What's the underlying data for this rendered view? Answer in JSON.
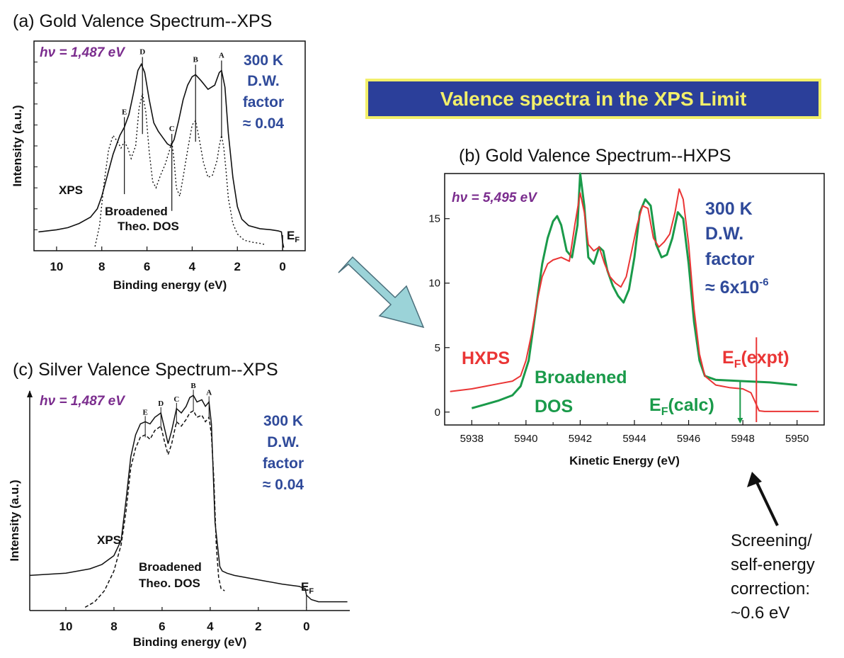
{
  "banner": {
    "text": "Valence spectra in the XPS Limit"
  },
  "colors": {
    "xps_trace": "#111111",
    "theory_trace": "#111111",
    "hxps_trace": "#ea3535",
    "dos_trace": "#1a9a4a",
    "hv_text": "#7b2d8e",
    "dw_text": "#2f4a9a",
    "banner_bg": "#2b3f9a",
    "banner_border": "#f2ef6a",
    "arrow_fill": "#9bd3d8"
  },
  "chart_data": [
    {
      "id": "a",
      "type": "line",
      "title": "(a) Gold Valence Spectrum--XPS",
      "xlabel": "Binding energy (eV)",
      "ylabel": "Intensity (a.u.)",
      "xlim": [
        11,
        -1
      ],
      "x_reversed": true,
      "x_ticks": [
        "10",
        "8",
        "6",
        "4",
        "2",
        "0"
      ],
      "x_tick_values": [
        10,
        8,
        6,
        4,
        2,
        0
      ],
      "ylim": [
        0,
        10
      ],
      "photon_energy": "hν = 1,487 eV",
      "dw_note": [
        "300 K",
        "D.W.",
        "factor",
        "≈ 0.04"
      ],
      "labels": {
        "xps": "XPS",
        "theory": [
          "Broadened",
          "Theo. DOS"
        ],
        "fermi": "E",
        "fermi_sub": "F"
      },
      "peaks": [
        {
          "name": "A",
          "x": 2.7
        },
        {
          "name": "B",
          "x": 3.85
        },
        {
          "name": "C",
          "x": 4.9
        },
        {
          "name": "D",
          "x": 6.2
        },
        {
          "name": "E",
          "x": 7.0
        }
      ],
      "series": [
        {
          "name": "XPS",
          "style": "solid",
          "x": [
            10.8,
            10.0,
            9.5,
            9.0,
            8.5,
            8.2,
            8.0,
            7.8,
            7.5,
            7.2,
            7.0,
            6.8,
            6.6,
            6.4,
            6.25,
            6.1,
            5.9,
            5.7,
            5.5,
            5.3,
            5.1,
            4.95,
            4.8,
            4.6,
            4.4,
            4.2,
            4.0,
            3.85,
            3.6,
            3.3,
            3.0,
            2.8,
            2.7,
            2.55,
            2.4,
            2.2,
            2.0,
            1.8,
            1.5,
            1.0,
            0.5,
            0.2,
            0.05,
            0.0,
            -0.05
          ],
          "y": [
            0.9,
            1.0,
            1.1,
            1.3,
            1.6,
            2.0,
            2.6,
            3.4,
            4.6,
            5.5,
            5.9,
            6.5,
            7.5,
            8.6,
            8.9,
            8.5,
            7.2,
            6.1,
            5.7,
            5.4,
            5.1,
            5.0,
            5.3,
            6.2,
            7.2,
            7.9,
            8.3,
            8.4,
            8.1,
            7.7,
            7.9,
            8.5,
            8.6,
            7.8,
            5.6,
            3.5,
            2.1,
            1.5,
            1.2,
            1.05,
            1.0,
            0.95,
            0.9,
            0.4,
            0.15
          ]
        },
        {
          "name": "Broadened Theo. DOS",
          "style": "dotted",
          "x": [
            8.3,
            8.1,
            7.9,
            7.7,
            7.5,
            7.3,
            7.15,
            7.0,
            6.85,
            6.7,
            6.5,
            6.35,
            6.2,
            6.05,
            5.9,
            5.75,
            5.6,
            5.4,
            5.2,
            5.0,
            4.9,
            4.8,
            4.7,
            4.55,
            4.4,
            4.2,
            4.0,
            3.85,
            3.7,
            3.5,
            3.3,
            3.1,
            2.9,
            2.8,
            2.7,
            2.6,
            2.5,
            2.4,
            2.2,
            2.0,
            1.7,
            1.3,
            1.0,
            0.8
          ],
          "y": [
            0.2,
            1.2,
            3.2,
            4.8,
            5.5,
            5.2,
            4.9,
            5.2,
            4.9,
            4.4,
            5.0,
            6.8,
            7.5,
            6.6,
            4.7,
            3.3,
            3.0,
            3.6,
            4.1,
            4.8,
            5.2,
            4.3,
            3.0,
            2.6,
            3.5,
            4.8,
            6.0,
            6.2,
            5.4,
            4.2,
            3.5,
            3.6,
            4.3,
            5.0,
            5.5,
            4.9,
            3.8,
            2.5,
            1.3,
            0.8,
            0.5,
            0.4,
            0.35,
            0.3
          ]
        }
      ]
    },
    {
      "id": "b",
      "type": "line",
      "title": "(b) Gold Valence Spectrum--HXPS",
      "xlabel": "Kinetic Energy (eV)",
      "ylabel": "",
      "xlim": [
        5937,
        5951
      ],
      "x_ticks": [
        "5938",
        "5940",
        "5942",
        "5944",
        "5946",
        "5948",
        "5950"
      ],
      "x_tick_values": [
        5938,
        5940,
        5942,
        5944,
        5946,
        5948,
        5950
      ],
      "ylim": [
        -1,
        18.5
      ],
      "y_ticks": [
        "0",
        "5",
        "10",
        "15"
      ],
      "y_tick_values": [
        0,
        5,
        10,
        15
      ],
      "photon_energy": "hν = 5,495 eV",
      "dw_note": [
        "300 K",
        "D.W.",
        "factor",
        "≈ 6x10",
        "-6"
      ],
      "labels": {
        "hxps": "HXPS",
        "dos": [
          "Broadened",
          "DOS"
        ],
        "ef_calc": "E",
        "ef_calc_sub": "F",
        "ef_calc_rest": "(calc)",
        "ef_expt": "E",
        "ef_expt_sub": "F",
        "ef_expt_rest": "(expt)"
      },
      "markers": {
        "ef_calc": 5947.9,
        "ef_expt": 5948.5
      },
      "series": [
        {
          "name": "HXPS",
          "x": [
            5937.2,
            5938.0,
            5938.5,
            5939.0,
            5939.5,
            5939.8,
            5940.0,
            5940.2,
            5940.4,
            5940.6,
            5940.8,
            5941.0,
            5941.3,
            5941.6,
            5941.8,
            5942.0,
            5942.15,
            5942.3,
            5942.5,
            5942.7,
            5942.9,
            5943.1,
            5943.3,
            5943.5,
            5943.7,
            5943.9,
            5944.1,
            5944.3,
            5944.5,
            5944.7,
            5944.9,
            5945.1,
            5945.3,
            5945.5,
            5945.65,
            5945.8,
            5946.0,
            5946.2,
            5946.4,
            5946.6,
            5947.0,
            5947.5,
            5948.0,
            5948.3,
            5948.45,
            5948.6,
            5948.8,
            5949.2,
            5950.0,
            5950.8
          ],
          "y": [
            1.6,
            1.8,
            2.0,
            2.2,
            2.4,
            2.8,
            4.0,
            6.0,
            8.5,
            10.5,
            11.5,
            11.8,
            12.0,
            11.7,
            14.5,
            17.0,
            15.5,
            13.0,
            12.5,
            12.8,
            11.5,
            10.5,
            10.0,
            9.7,
            10.5,
            12.5,
            14.5,
            16.0,
            15.8,
            13.5,
            12.8,
            13.2,
            13.8,
            15.5,
            17.3,
            16.5,
            13.0,
            8.0,
            4.5,
            2.8,
            2.1,
            1.9,
            1.8,
            1.5,
            0.8,
            0.1,
            0.05,
            0.05,
            0.05,
            0.05
          ]
        },
        {
          "name": "Broadened DOS",
          "x": [
            5938.0,
            5938.5,
            5939.0,
            5939.5,
            5939.8,
            5940.1,
            5940.4,
            5940.6,
            5940.8,
            5941.0,
            5941.15,
            5941.3,
            5941.5,
            5941.7,
            5941.9,
            5942.0,
            5942.15,
            5942.3,
            5942.5,
            5942.7,
            5942.85,
            5943.0,
            5943.2,
            5943.4,
            5943.6,
            5943.8,
            5944.0,
            5944.2,
            5944.4,
            5944.6,
            5944.8,
            5945.0,
            5945.2,
            5945.4,
            5945.6,
            5945.8,
            5946.0,
            5946.2,
            5946.4,
            5946.6,
            5947.0,
            5948.0,
            5949.0,
            5950.0
          ],
          "y": [
            0.3,
            0.6,
            0.9,
            1.3,
            2.0,
            4.0,
            8.5,
            11.5,
            13.5,
            14.8,
            15.2,
            14.5,
            12.5,
            12.0,
            14.5,
            18.5,
            16.0,
            12.0,
            11.5,
            12.8,
            12.5,
            11.0,
            9.8,
            9.0,
            8.5,
            9.5,
            12.0,
            15.5,
            16.5,
            16.0,
            13.0,
            12.0,
            12.2,
            13.5,
            15.5,
            15.0,
            11.5,
            7.0,
            4.0,
            2.8,
            2.5,
            2.4,
            2.3,
            2.1
          ]
        }
      ]
    },
    {
      "id": "c",
      "type": "line",
      "title": "(c) Silver Valence Spectrum--XPS",
      "xlabel": "Binding energy (eV)",
      "ylabel": "Intensity (a.u.)",
      "xlim": [
        11.5,
        -1.8
      ],
      "x_reversed": true,
      "x_ticks": [
        "10",
        "8",
        "6",
        "4",
        "2",
        "0"
      ],
      "x_tick_values": [
        10,
        8,
        6,
        4,
        2,
        0
      ],
      "ylim": [
        0,
        10
      ],
      "photon_energy": "hν = 1,487 eV",
      "dw_note": [
        "300 K",
        "D.W.",
        "factor",
        "≈ 0.04"
      ],
      "labels": {
        "xps": "XPS",
        "theory": [
          "Broadened",
          "Theo. DOS"
        ],
        "fermi": "E",
        "fermi_sub": "F"
      },
      "peaks": [
        {
          "name": "A",
          "x": 4.05
        },
        {
          "name": "B",
          "x": 4.7
        },
        {
          "name": "C",
          "x": 5.4
        },
        {
          "name": "D",
          "x": 6.05
        },
        {
          "name": "E",
          "x": 6.7
        }
      ],
      "series": [
        {
          "name": "XPS",
          "style": "solid",
          "x": [
            11.5,
            10.0,
            9.0,
            8.5,
            8.0,
            7.7,
            7.5,
            7.3,
            7.1,
            6.9,
            6.7,
            6.5,
            6.3,
            6.05,
            5.9,
            5.75,
            5.6,
            5.4,
            5.2,
            5.0,
            4.85,
            4.7,
            4.55,
            4.35,
            4.2,
            4.05,
            3.95,
            3.8,
            3.6,
            3.5,
            3.3,
            3.0,
            2.0,
            1.0,
            0.3,
            0.05,
            0.0,
            -0.2,
            -0.5,
            -0.9,
            -1.3,
            -1.7
          ],
          "y": [
            1.6,
            1.7,
            1.9,
            2.1,
            2.5,
            3.2,
            5.0,
            7.0,
            8.0,
            8.5,
            8.6,
            8.5,
            8.8,
            9.0,
            8.3,
            7.6,
            8.2,
            9.2,
            9.0,
            9.3,
            9.7,
            9.8,
            9.5,
            9.6,
            9.3,
            9.5,
            8.5,
            4.0,
            2.0,
            1.8,
            1.7,
            1.6,
            1.4,
            1.2,
            1.1,
            1.0,
            0.7,
            0.5,
            0.4,
            0.4,
            0.4,
            0.4
          ]
        },
        {
          "name": "Broadened Theo. DOS",
          "style": "dashed",
          "x": [
            9.2,
            8.8,
            8.4,
            8.0,
            7.7,
            7.5,
            7.3,
            7.1,
            6.9,
            6.7,
            6.5,
            6.3,
            6.05,
            5.9,
            5.75,
            5.6,
            5.4,
            5.2,
            5.0,
            4.85,
            4.7,
            4.55,
            4.35,
            4.2,
            4.05,
            3.95,
            3.85,
            3.75,
            3.65,
            3.55,
            3.4
          ],
          "y": [
            0.15,
            0.4,
            0.9,
            1.8,
            3.0,
            4.5,
            6.5,
            7.4,
            7.9,
            8.0,
            7.8,
            8.2,
            8.4,
            7.7,
            7.1,
            7.6,
            8.6,
            8.4,
            8.7,
            9.0,
            9.1,
            8.8,
            8.9,
            8.6,
            8.8,
            8.0,
            6.0,
            3.0,
            1.5,
            1.0,
            0.9
          ]
        }
      ]
    }
  ],
  "annotation": {
    "lines": [
      "Screening/",
      "self-energy",
      "correction:",
      "~0.6 eV"
    ]
  }
}
